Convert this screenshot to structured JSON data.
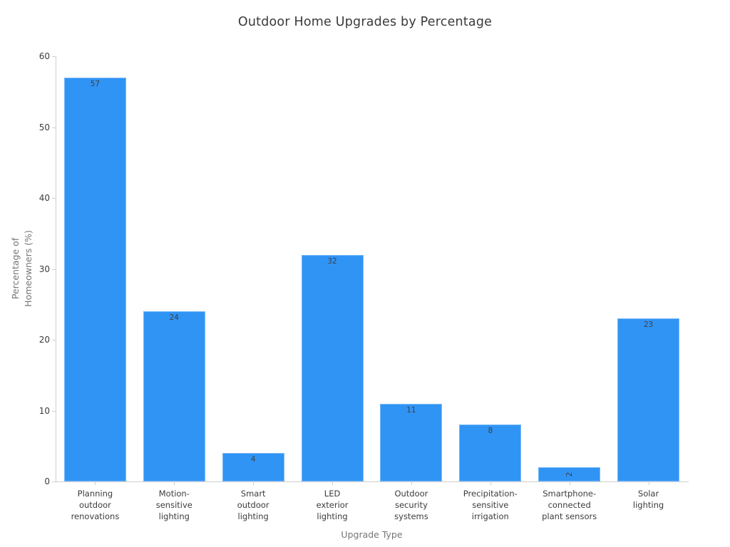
{
  "chart_data": {
    "type": "bar",
    "title": "Outdoor Home Upgrades by Percentage",
    "xlabel": "Upgrade Type",
    "ylabel": "Percentage of\nHomeowners (%)",
    "categories": [
      "Planning\noutdoor\nrenovations",
      "Motion-\nsensitive\nlighting",
      "Smart\noutdoor\nlighting",
      "LED\nexterior\nlighting",
      "Outdoor\nsecurity\nsystems",
      "Precipitation-\nsensitive\nirrigation",
      "Smartphone-\nconnected\nplant sensors",
      "Solar\nlighting"
    ],
    "values": [
      57,
      24,
      4,
      32,
      11,
      8,
      2,
      23
    ],
    "value_labels": [
      "57",
      "24",
      "4",
      "32",
      "11",
      "8",
      "2",
      "23"
    ],
    "rotated_value_label_indices": [
      6
    ],
    "ylim": [
      0,
      60
    ],
    "yticks": [
      0,
      10,
      20,
      30,
      40,
      50,
      60
    ],
    "grid": false,
    "legend_position": "none",
    "bar_color": "#3094f5",
    "colors": {
      "title": "#3a3a3a",
      "axis_title": "#757575",
      "tick_label": "#3c3c3c",
      "value_label": "#3f3f3f",
      "axis_line": "#cfcfcf"
    }
  }
}
